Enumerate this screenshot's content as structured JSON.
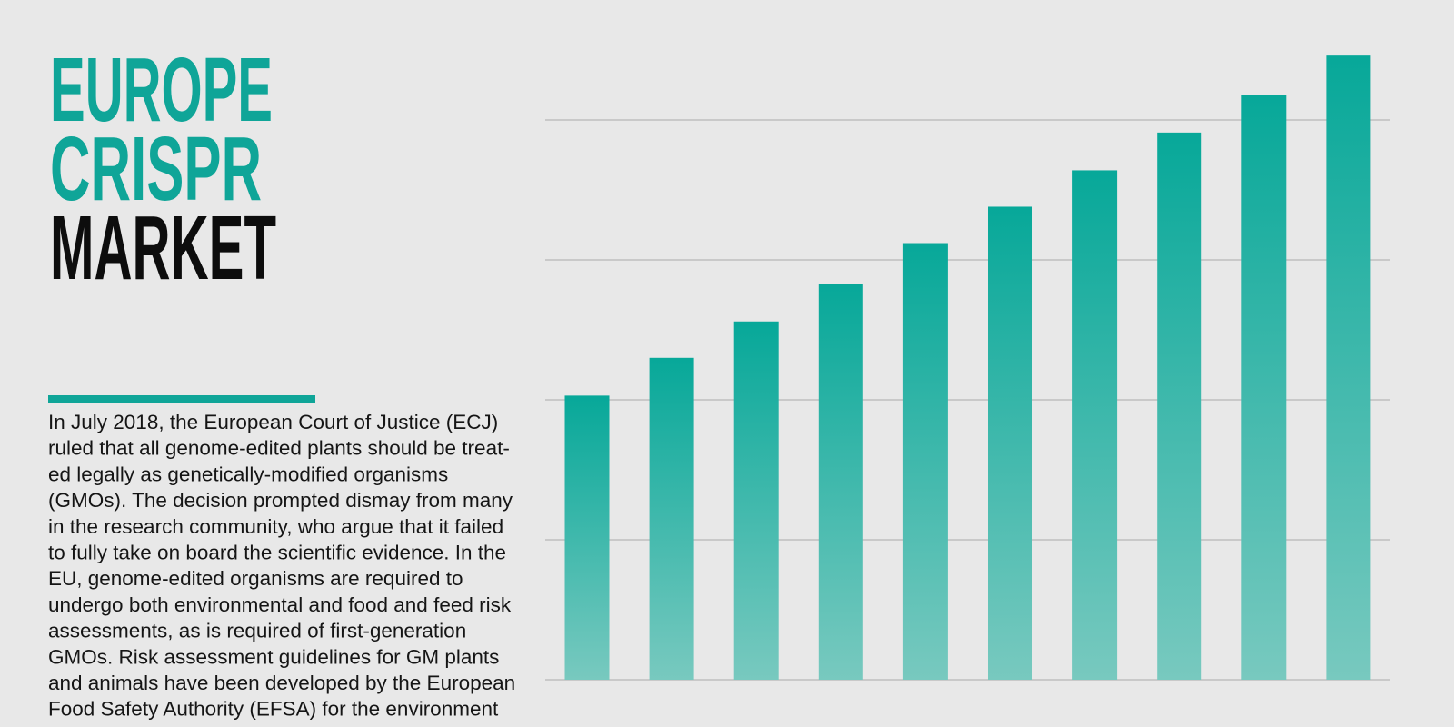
{
  "title": [
    "EUROPE",
    "CRISPR",
    "MARKET"
  ],
  "paragraph": [
    "In July 2018, the European Court of Justice (ECJ)",
    "ruled that all genome-edited plants should be treat-",
    "ed legally as genetically-modified organisms",
    "(GMOs). The decision prompted dismay from many",
    "in the research community, who argue that it failed",
    "to fully take on board the scientific evidence. In the",
    "EU, genome-edited organisms are required to",
    "undergo both environmental and food and feed risk",
    "assessments, as is required of first-generation",
    "GMOs. Risk assessment guidelines for GM plants",
    "and animals have been developed by the European",
    "Food Safety Authority (EFSA) for the environment"
  ],
  "chart_data": {
    "type": "bar",
    "categories": [
      null,
      null,
      null,
      null,
      null,
      null,
      null,
      null,
      null,
      null
    ],
    "values": [
      2.03,
      2.3,
      2.56,
      2.83,
      3.12,
      3.38,
      3.64,
      3.91,
      4.18,
      4.46
    ],
    "color": "#0aa89a",
    "ylim": [
      0,
      4.6
    ],
    "yticks": [
      0,
      1,
      2,
      3,
      4
    ],
    "grid": true
  }
}
